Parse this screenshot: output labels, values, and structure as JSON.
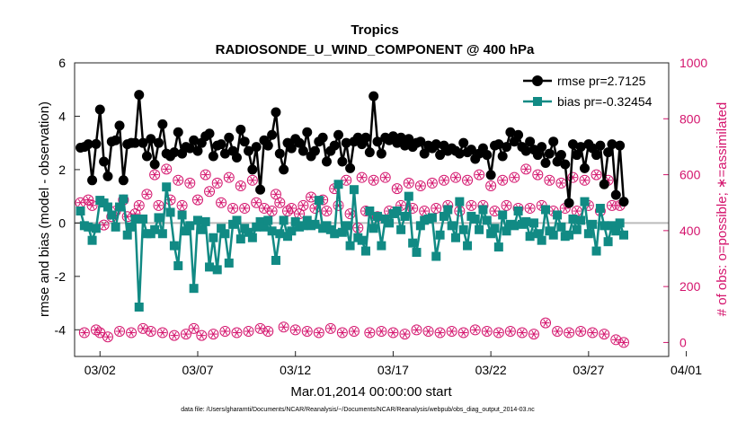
{
  "chart_data": {
    "type": "line",
    "title": "Tropics",
    "subtitle": "RADIOSONDE_U_WIND_COMPONENT @ 400 hPa",
    "xlabel": "Mar.01,2014 00:00:00 start",
    "ylabel": "rmse and bias (model - observation)",
    "y2label": "# of obs: o=possible; ∗=assimilated",
    "footnote": "data file: /Users/gharamti/Documents/NCAR/Reanalysis/~/Documents/NCAR/Reanalysis/webpub/obs_diag_output_2014-03.nc",
    "xlim": [
      0.7,
      31.1
    ],
    "ylim": [
      -5,
      6
    ],
    "y2lim": [
      -50,
      1000
    ],
    "x_ticks": [
      {
        "v": 2,
        "label": "03/02"
      },
      {
        "v": 7,
        "label": "03/07"
      },
      {
        "v": 12,
        "label": "03/12"
      },
      {
        "v": 17,
        "label": "03/17"
      },
      {
        "v": 22,
        "label": "03/22"
      },
      {
        "v": 27,
        "label": "03/27"
      },
      {
        "v": 32,
        "label": "04/01"
      }
    ],
    "y_ticks": [
      6,
      4,
      2,
      0,
      -2,
      -4
    ],
    "y2_ticks": [
      1000,
      800,
      600,
      400,
      200,
      0
    ],
    "colors": {
      "rmse": "#000000",
      "bias": "#118a84",
      "obs": "#d4146d",
      "zero": "#bbbbbb"
    },
    "series": [
      {
        "name": "rmse pr=2.7125",
        "axis": "left",
        "marker": "circle",
        "values": [
          2.82,
          2.85,
          2.95,
          1.6,
          2.96,
          4.25,
          2.3,
          1.75,
          3.05,
          3.1,
          3.65,
          1.6,
          2.95,
          3.0,
          3.0,
          4.8,
          3.0,
          2.5,
          3.15,
          2.2,
          3.0,
          3.7,
          2.6,
          2.5,
          2.65,
          3.4,
          2.6,
          2.85,
          2.8,
          3.1,
          2.7,
          3.0,
          3.25,
          3.35,
          2.5,
          2.9,
          2.95,
          2.6,
          3.2,
          2.7,
          2.45,
          3.5,
          3.05,
          2.7,
          2.0,
          2.85,
          1.25,
          3.1,
          2.9,
          3.3,
          4.15,
          2.6,
          2.0,
          3.0,
          2.8,
          3.15,
          3.0,
          2.7,
          3.4,
          2.5,
          2.7,
          3.05,
          3.2,
          2.3,
          2.7,
          2.9,
          3.3,
          2.3,
          3.0,
          2.05,
          3.05,
          3.2,
          2.95,
          3.2,
          2.65,
          4.75,
          3.05,
          2.6,
          3.2,
          3.1,
          3.25,
          3.0,
          3.2,
          2.9,
          3.15,
          2.85,
          3.0,
          3.05,
          2.6,
          2.9,
          2.8,
          2.95,
          2.55,
          2.9,
          2.7,
          2.8,
          2.7,
          2.6,
          3.0,
          2.65,
          2.75,
          2.4,
          2.6,
          2.8,
          2.55,
          1.8,
          2.9,
          2.95,
          2.5,
          2.85,
          3.4,
          3.05,
          3.3,
          2.85,
          2.7,
          3.05,
          2.75,
          2.55,
          2.85,
          2.25,
          2.6,
          3.05,
          2.3,
          2.55,
          2.2,
          0.75,
          2.95,
          2.55,
          2.85,
          2.05,
          2.95,
          2.8,
          2.55,
          2.9,
          1.45,
          2.65,
          2.95,
          1.05,
          2.9,
          0.8
        ]
      },
      {
        "name": "bias pr=-0.32454",
        "axis": "left",
        "marker": "square",
        "values": [
          0.45,
          -0.1,
          -0.15,
          -0.65,
          -0.2,
          0.85,
          0.75,
          0.6,
          0.3,
          -0.15,
          0.6,
          0.9,
          -0.45,
          -0.15,
          0.15,
          -3.15,
          0.15,
          -0.4,
          -0.4,
          -0.25,
          0.2,
          -0.4,
          1.35,
          0.4,
          -0.85,
          -1.6,
          0.3,
          -0.3,
          -0.1,
          -2.45,
          0.1,
          -0.25,
          0.05,
          -1.65,
          -0.55,
          -1.75,
          -0.2,
          -0.4,
          -1.5,
          -0.05,
          0.1,
          -0.6,
          -0.2,
          -0.35,
          -0.55,
          -0.15,
          0.05,
          -0.15,
          0.1,
          -0.3,
          -1.4,
          -0.4,
          0.1,
          -0.5,
          -0.3,
          0.05,
          -0.15,
          -0.1,
          0.1,
          -0.1,
          -0.05,
          0.85,
          -0.2,
          -0.1,
          -0.25,
          -0.4,
          1.45,
          -0.35,
          -0.1,
          -0.85,
          1.25,
          -0.55,
          -0.65,
          -1.05,
          0.45,
          -0.2,
          0.25,
          -0.85,
          0.15,
          0.0,
          0.35,
          0.45,
          -0.25,
          0.25,
          1.0,
          -0.75,
          -1.1,
          -0.1,
          0.1,
          0.15,
          0.2,
          -1.25,
          -0.45,
          0.25,
          0.5,
          -0.1,
          -0.55,
          0.8,
          -0.25,
          -0.85,
          0.25,
          0.15,
          -0.25,
          0.5,
          0.1,
          -0.4,
          -0.2,
          -0.9,
          0.3,
          -0.3,
          -0.05,
          -0.1,
          0.45,
          -0.05,
          0.05,
          -0.5,
          0.0,
          -0.4,
          -0.65,
          0.5,
          -0.3,
          -0.45,
          0.3,
          -0.15,
          -0.5,
          -0.45,
          0.15,
          -0.25,
          0.1,
          0.8,
          -0.4,
          -0.05,
          -1.05,
          0.55,
          -0.1,
          -0.7,
          -0.1,
          -0.3,
          0.0,
          -0.45
        ]
      },
      {
        "name": "obs possible",
        "axis": "right",
        "marker": "circle-open",
        "values": [
          500,
          35,
          510,
          490,
          45,
          35,
          420,
          20,
          450,
          470,
          40,
          510,
          450,
          35,
          460,
          490,
          50,
          530,
          40,
          600,
          490,
          35,
          620,
          510,
          25,
          580,
          490,
          30,
          570,
          50,
          510,
          25,
          600,
          540,
          30,
          570,
          500,
          40,
          590,
          480,
          35,
          560,
          480,
          40,
          580,
          500,
          50,
          480,
          40,
          470,
          530,
          500,
          55,
          470,
          480,
          45,
          460,
          490,
          40,
          520,
          480,
          35,
          510,
          470,
          50,
          550,
          490,
          35,
          580,
          460,
          40,
          410,
          590,
          470,
          35,
          580,
          450,
          40,
          590,
          470,
          35,
          550,
          490,
          30,
          570,
          480,
          45,
          560,
          470,
          40,
          570,
          480,
          35,
          580,
          490,
          40,
          590,
          470,
          35,
          580,
          490,
          45,
          600,
          490,
          40,
          560,
          470,
          35,
          580,
          490,
          40,
          590,
          480,
          35,
          620,
          480,
          30,
          600,
          490,
          70,
          580,
          470,
          40,
          570,
          480,
          35,
          590,
          470,
          40,
          580,
          490,
          35,
          600,
          470,
          30,
          580,
          490,
          10,
          490,
          0
        ]
      },
      {
        "name": "obs assimilated",
        "axis": "right",
        "marker": "star",
        "values": [
          500,
          35,
          510,
          490,
          45,
          35,
          420,
          20,
          450,
          470,
          40,
          510,
          450,
          35,
          460,
          490,
          50,
          530,
          40,
          600,
          490,
          35,
          620,
          510,
          25,
          580,
          490,
          30,
          570,
          50,
          510,
          25,
          600,
          540,
          30,
          570,
          500,
          40,
          590,
          480,
          35,
          560,
          480,
          40,
          580,
          500,
          50,
          480,
          40,
          470,
          530,
          500,
          55,
          470,
          480,
          45,
          460,
          490,
          40,
          520,
          480,
          35,
          510,
          470,
          50,
          550,
          490,
          35,
          580,
          460,
          40,
          410,
          590,
          470,
          35,
          580,
          450,
          40,
          590,
          470,
          35,
          550,
          490,
          30,
          570,
          480,
          45,
          560,
          470,
          40,
          570,
          480,
          35,
          580,
          490,
          40,
          590,
          470,
          35,
          580,
          490,
          45,
          600,
          490,
          40,
          560,
          470,
          35,
          580,
          490,
          40,
          590,
          480,
          35,
          620,
          480,
          30,
          600,
          490,
          70,
          580,
          470,
          40,
          570,
          480,
          35,
          590,
          470,
          40,
          580,
          490,
          35,
          600,
          470,
          30,
          580,
          490,
          10,
          490,
          0
        ]
      }
    ],
    "legend": {
      "placement": "top-right",
      "entries": [
        "rmse pr=2.7125",
        "bias pr=-0.32454"
      ]
    }
  }
}
